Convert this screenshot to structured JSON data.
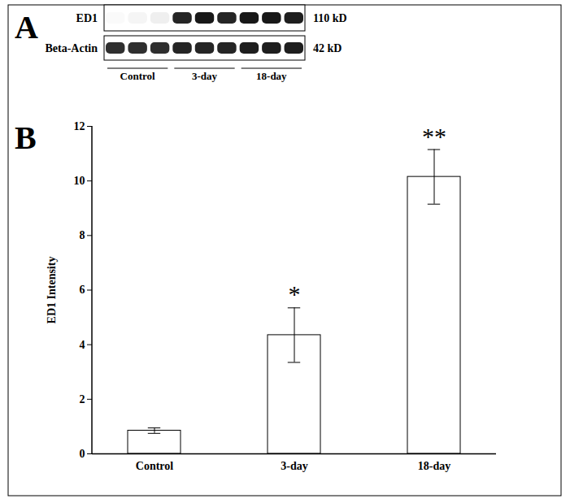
{
  "chart_data": {
    "type": "bar",
    "panel_label": "B",
    "categories": [
      "Control",
      "3-day",
      "18-day"
    ],
    "values": [
      0.85,
      4.35,
      10.15
    ],
    "errors": [
      0.1,
      1.0,
      1.0
    ],
    "annotations": [
      null,
      "*",
      "**"
    ],
    "ylabel": "ED1 Intensity",
    "ylim": [
      0,
      12
    ],
    "yticks": [
      0,
      2,
      4,
      6,
      8,
      10,
      12
    ],
    "color": "#ffffff"
  },
  "blot": {
    "panel_label": "A",
    "groups": [
      "Control",
      "3-day",
      "18-day"
    ],
    "rows": [
      {
        "label": "ED1",
        "size": "110 kD",
        "bands": [
          0.04,
          0.08,
          0.12,
          0.88,
          0.92,
          0.88,
          0.92,
          0.92,
          0.9
        ]
      },
      {
        "label": "Beta-Actin",
        "size": "42 kD",
        "bands": [
          0.85,
          0.85,
          0.85,
          0.88,
          0.88,
          0.88,
          0.9,
          0.9,
          0.9
        ]
      }
    ]
  }
}
